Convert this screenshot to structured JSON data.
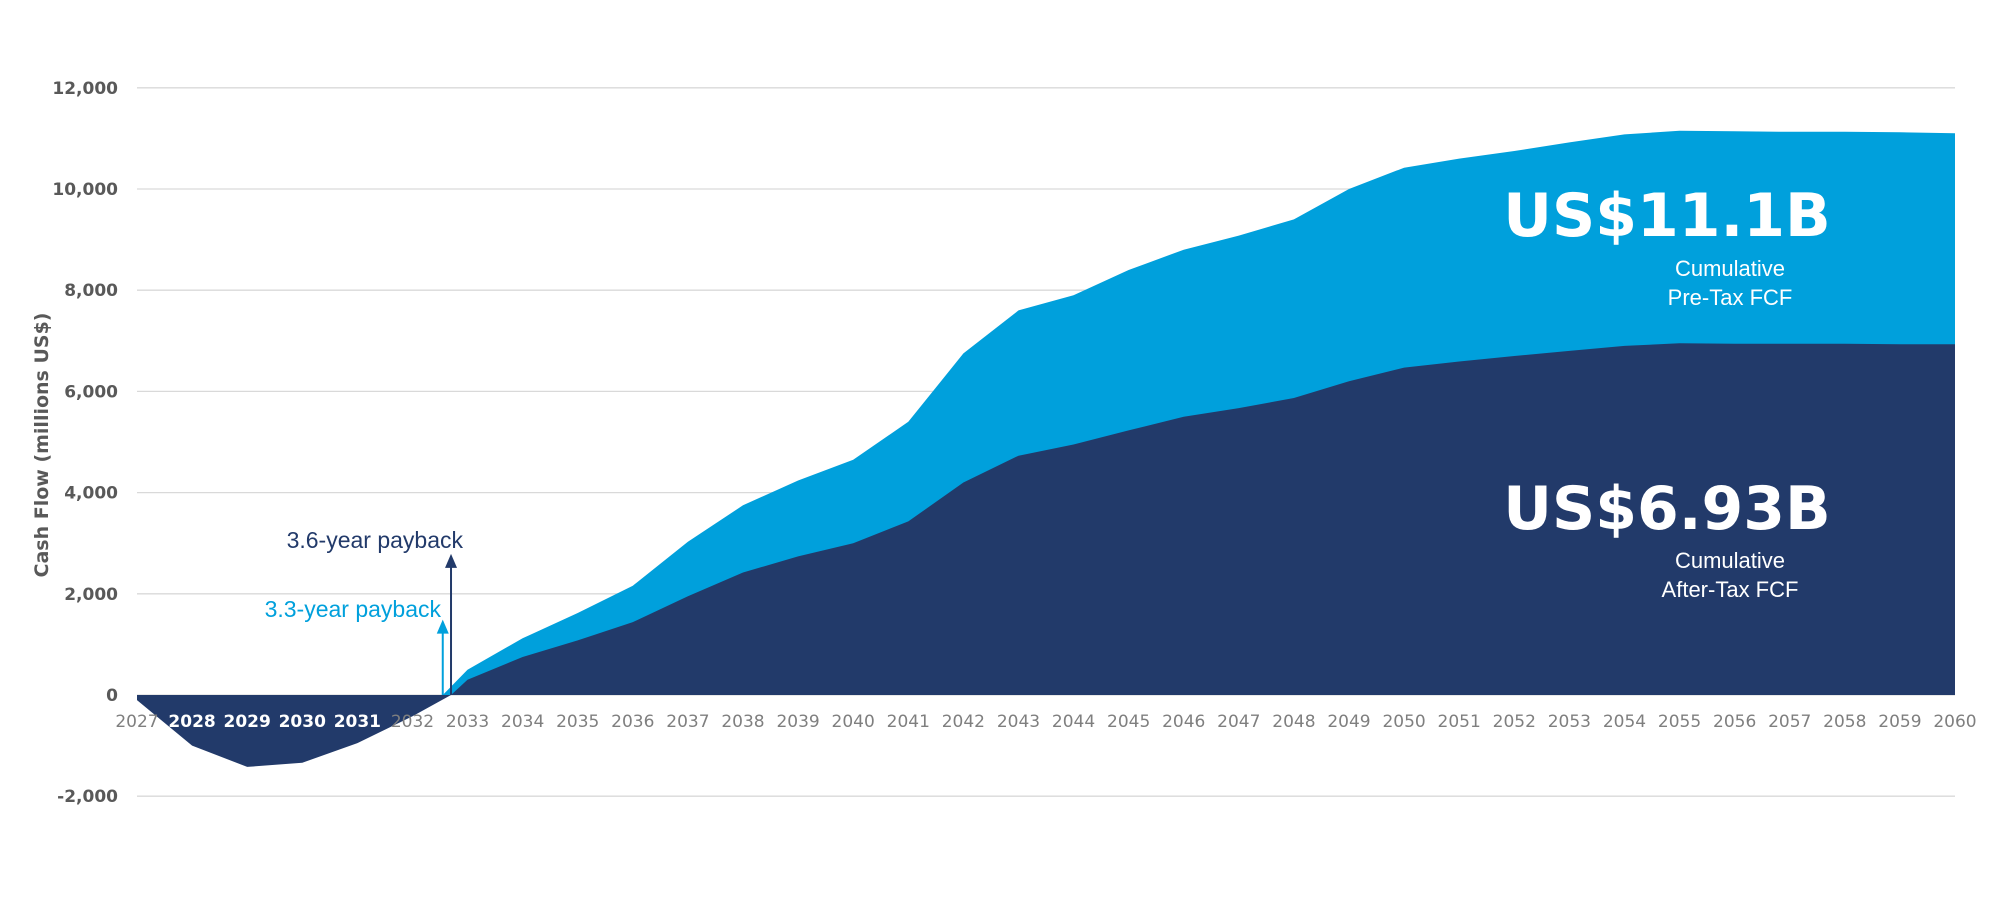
{
  "chart_data": {
    "type": "area",
    "ylabel": "Cash Flow (millions US$)",
    "xlabel": "",
    "ylim": [
      -2000,
      12000
    ],
    "yticks": [
      -2000,
      0,
      2000,
      4000,
      6000,
      8000,
      10000,
      12000
    ],
    "ytick_labels": [
      "-2,000",
      "0",
      "2,000",
      "4,000",
      "6,000",
      "8,000",
      "10,000",
      "12,000"
    ],
    "grid": true,
    "x": [
      "2027",
      "2028",
      "2029",
      "2030",
      "2031",
      "2032",
      "2033",
      "2034",
      "2035",
      "2036",
      "2037",
      "2038",
      "2039",
      "2040",
      "2041",
      "2042",
      "2043",
      "2044",
      "2045",
      "2046",
      "2047",
      "2048",
      "2049",
      "2050",
      "2051",
      "2052",
      "2053",
      "2054",
      "2055",
      "2056",
      "2057",
      "2058",
      "2059",
      "2060"
    ],
    "series": [
      {
        "name": "Cumulative Pre-Tax FCF",
        "color": "#00A0DC",
        "points": [
          [
            2027,
            0
          ],
          [
            2032,
            0
          ],
          [
            2032.55,
            0
          ],
          [
            2033,
            500
          ],
          [
            2034,
            1120
          ],
          [
            2035,
            1620
          ],
          [
            2036,
            2160
          ],
          [
            2037,
            3030
          ],
          [
            2038,
            3750
          ],
          [
            2039,
            4240
          ],
          [
            2040,
            4650
          ],
          [
            2041,
            5400
          ],
          [
            2042,
            6750
          ],
          [
            2043,
            7600
          ],
          [
            2044,
            7900
          ],
          [
            2045,
            8400
          ],
          [
            2046,
            8800
          ],
          [
            2047,
            9080
          ],
          [
            2048,
            9400
          ],
          [
            2049,
            10000
          ],
          [
            2050,
            10420
          ],
          [
            2051,
            10600
          ],
          [
            2052,
            10750
          ],
          [
            2053,
            10920
          ],
          [
            2054,
            11080
          ],
          [
            2055,
            11150
          ],
          [
            2056,
            11140
          ],
          [
            2057,
            11130
          ],
          [
            2058,
            11130
          ],
          [
            2059,
            11120
          ],
          [
            2060,
            11100
          ]
        ]
      },
      {
        "name": "Cumulative After-Tax FCF",
        "color": "#223A6A",
        "points": [
          [
            2027,
            -100
          ],
          [
            2028,
            -1000
          ],
          [
            2029,
            -1420
          ],
          [
            2030,
            -1340
          ],
          [
            2031,
            -950
          ],
          [
            2032,
            -420
          ],
          [
            2032.7,
            0
          ],
          [
            2033,
            300
          ],
          [
            2034,
            750
          ],
          [
            2035,
            1080
          ],
          [
            2036,
            1440
          ],
          [
            2037,
            1950
          ],
          [
            2038,
            2420
          ],
          [
            2039,
            2740
          ],
          [
            2040,
            3000
          ],
          [
            2041,
            3430
          ],
          [
            2042,
            4200
          ],
          [
            2043,
            4730
          ],
          [
            2044,
            4950
          ],
          [
            2045,
            5230
          ],
          [
            2046,
            5500
          ],
          [
            2047,
            5670
          ],
          [
            2048,
            5870
          ],
          [
            2049,
            6200
          ],
          [
            2050,
            6470
          ],
          [
            2051,
            6590
          ],
          [
            2052,
            6700
          ],
          [
            2053,
            6800
          ],
          [
            2054,
            6900
          ],
          [
            2055,
            6950
          ],
          [
            2056,
            6940
          ],
          [
            2057,
            6940
          ],
          [
            2058,
            6940
          ],
          [
            2059,
            6930
          ],
          [
            2060,
            6930
          ]
        ]
      }
    ],
    "annotations": {
      "pretax_total": "US$11.1B",
      "pretax_label_1": "Cumulative",
      "pretax_label_2": "Pre-Tax FCF",
      "aftertax_total": "US$6.93B",
      "aftertax_label_1": "Cumulative",
      "aftertax_label_2": "After-Tax FCF",
      "payback_pretax": "3.3-year payback",
      "payback_aftertax": "3.6-year payback",
      "payback_pretax_year": 2032.55,
      "payback_aftertax_year": 2032.7,
      "payback_pretax_arrow_value": 1450,
      "payback_aftertax_arrow_value": 2750
    },
    "colors": {
      "pretax": "#00A0DC",
      "aftertax": "#223A6A",
      "grid": "#D9D9D9",
      "tick_dark_area": "#FFFFFF",
      "tick_default": "#7F7F7F"
    }
  }
}
